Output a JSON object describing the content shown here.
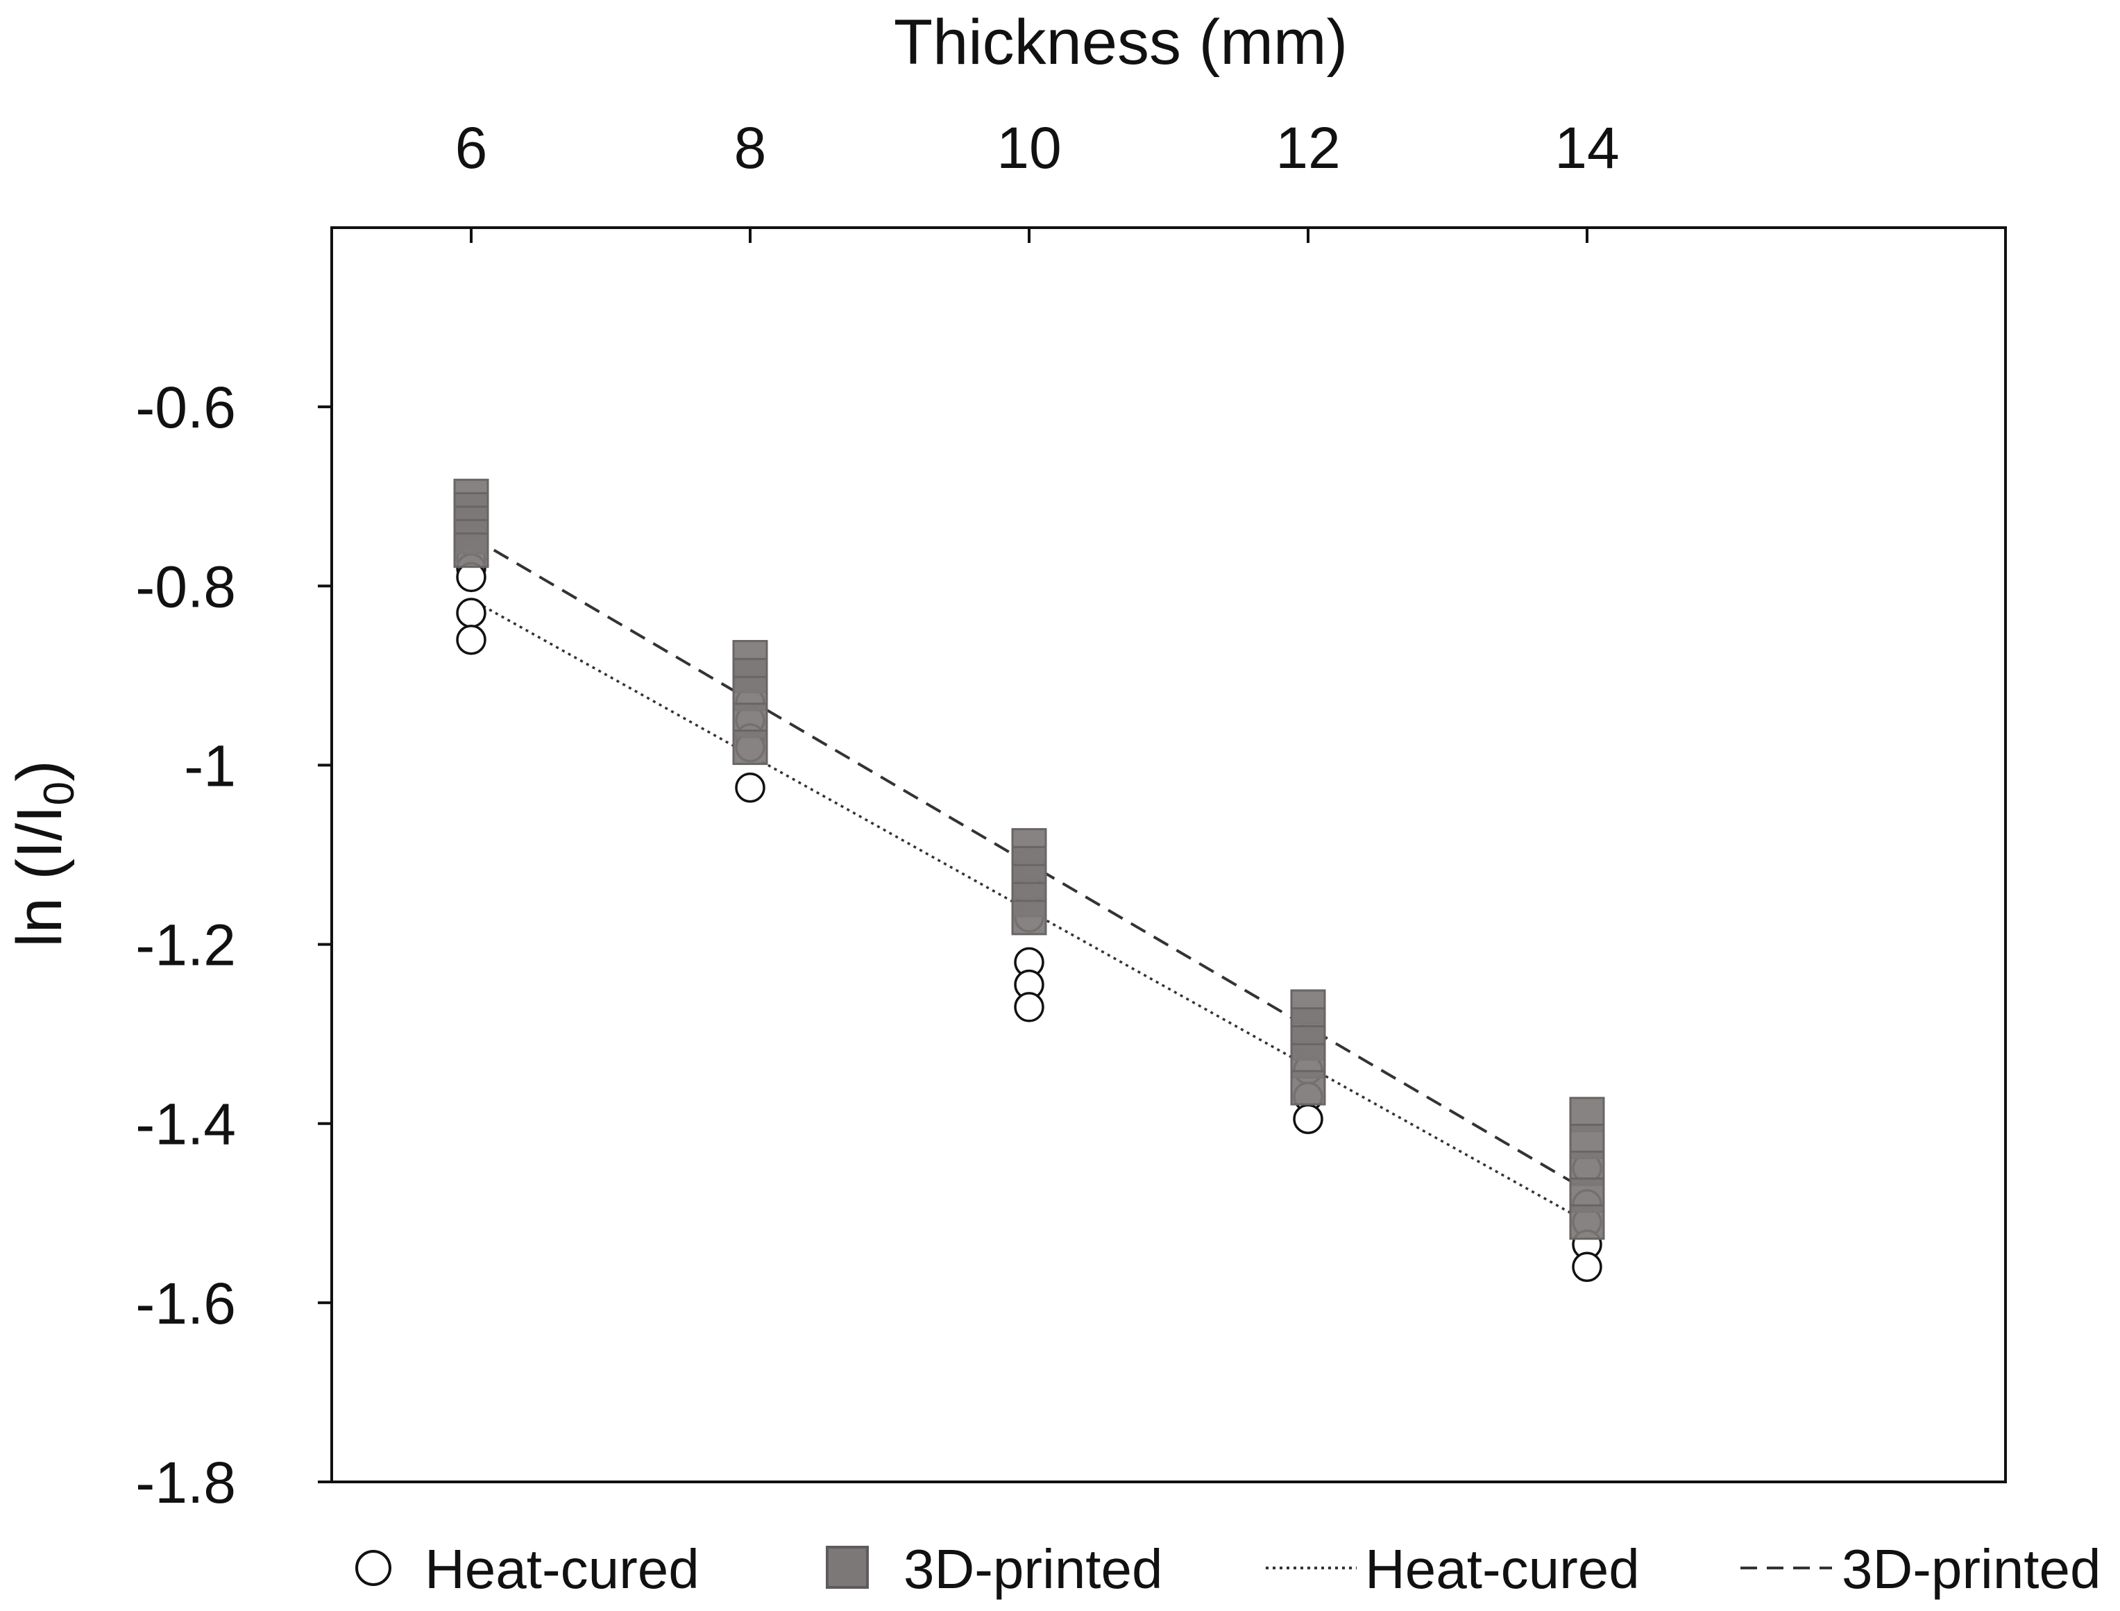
{
  "chart_data": {
    "type": "scatter",
    "title": "",
    "xlabel": "Thickness (mm)",
    "xlabel_position": "top",
    "ylabel_main": "ln (I/I",
    "ylabel_sub": "0",
    "ylabel_close": ")",
    "xlim": [
      5,
      17
    ],
    "ylim": [
      -1.8,
      -0.4
    ],
    "xticks": [
      6,
      8,
      10,
      12,
      14
    ],
    "xtick_labels": [
      "6",
      "8",
      "10",
      "12",
      "14"
    ],
    "yticks": [
      -0.6,
      -0.8,
      -1,
      -1.2,
      -1.4,
      -1.6,
      -1.8
    ],
    "ytick_labels": [
      "-0.6",
      "-0.8",
      "-1",
      "-1.2",
      "-1.4",
      "-1.6",
      "-1.8"
    ],
    "grid": false,
    "legend_position": "bottom",
    "series": [
      {
        "name": "Heat-cured",
        "kind": "points",
        "marker": "circle",
        "color": "#ffffff",
        "points": [
          {
            "x": 6,
            "y": -0.74
          },
          {
            "x": 6,
            "y": -0.76
          },
          {
            "x": 6,
            "y": -0.77
          },
          {
            "x": 6,
            "y": -0.78
          },
          {
            "x": 6,
            "y": -0.79
          },
          {
            "x": 6,
            "y": -0.83
          },
          {
            "x": 6,
            "y": -0.86
          },
          {
            "x": 8,
            "y": -0.93
          },
          {
            "x": 8,
            "y": -0.95
          },
          {
            "x": 8,
            "y": -0.97
          },
          {
            "x": 8,
            "y": -0.98
          },
          {
            "x": 8,
            "y": -1.025
          },
          {
            "x": 10,
            "y": -1.11
          },
          {
            "x": 10,
            "y": -1.14
          },
          {
            "x": 10,
            "y": -1.17
          },
          {
            "x": 10,
            "y": -1.22
          },
          {
            "x": 10,
            "y": -1.245
          },
          {
            "x": 10,
            "y": -1.27
          },
          {
            "x": 12,
            "y": -1.31
          },
          {
            "x": 12,
            "y": -1.34
          },
          {
            "x": 12,
            "y": -1.37
          },
          {
            "x": 12,
            "y": -1.395
          },
          {
            "x": 14,
            "y": -1.45
          },
          {
            "x": 14,
            "y": -1.49
          },
          {
            "x": 14,
            "y": -1.51
          },
          {
            "x": 14,
            "y": -1.535
          },
          {
            "x": 14,
            "y": -1.56
          }
        ]
      },
      {
        "name": "3D-printed",
        "kind": "points",
        "marker": "square",
        "color": "#7d7878",
        "points": [
          {
            "x": 6,
            "y": -0.7
          },
          {
            "x": 6,
            "y": -0.715
          },
          {
            "x": 6,
            "y": -0.73
          },
          {
            "x": 6,
            "y": -0.745
          },
          {
            "x": 6,
            "y": -0.76
          },
          {
            "x": 8,
            "y": -0.88
          },
          {
            "x": 8,
            "y": -0.9
          },
          {
            "x": 8,
            "y": -0.92
          },
          {
            "x": 8,
            "y": -0.95
          },
          {
            "x": 8,
            "y": -0.98
          },
          {
            "x": 10,
            "y": -1.09
          },
          {
            "x": 10,
            "y": -1.11
          },
          {
            "x": 10,
            "y": -1.13
          },
          {
            "x": 10,
            "y": -1.15
          },
          {
            "x": 10,
            "y": -1.17
          },
          {
            "x": 12,
            "y": -1.27
          },
          {
            "x": 12,
            "y": -1.29
          },
          {
            "x": 12,
            "y": -1.31
          },
          {
            "x": 12,
            "y": -1.33
          },
          {
            "x": 12,
            "y": -1.36
          },
          {
            "x": 14,
            "y": -1.39
          },
          {
            "x": 14,
            "y": -1.42
          },
          {
            "x": 14,
            "y": -1.45
          },
          {
            "x": 14,
            "y": -1.48
          },
          {
            "x": 14,
            "y": -1.51
          }
        ]
      },
      {
        "name": "Heat-cured",
        "kind": "line",
        "dash": "dotted",
        "color": "#333333",
        "points": [
          {
            "x": 6,
            "y": -0.815
          },
          {
            "x": 14,
            "y": -1.51
          }
        ]
      },
      {
        "name": "3D-printed",
        "kind": "line",
        "dash": "dashed",
        "color": "#333333",
        "points": [
          {
            "x": 6,
            "y": -0.745
          },
          {
            "x": 14,
            "y": -1.475
          }
        ]
      }
    ]
  }
}
